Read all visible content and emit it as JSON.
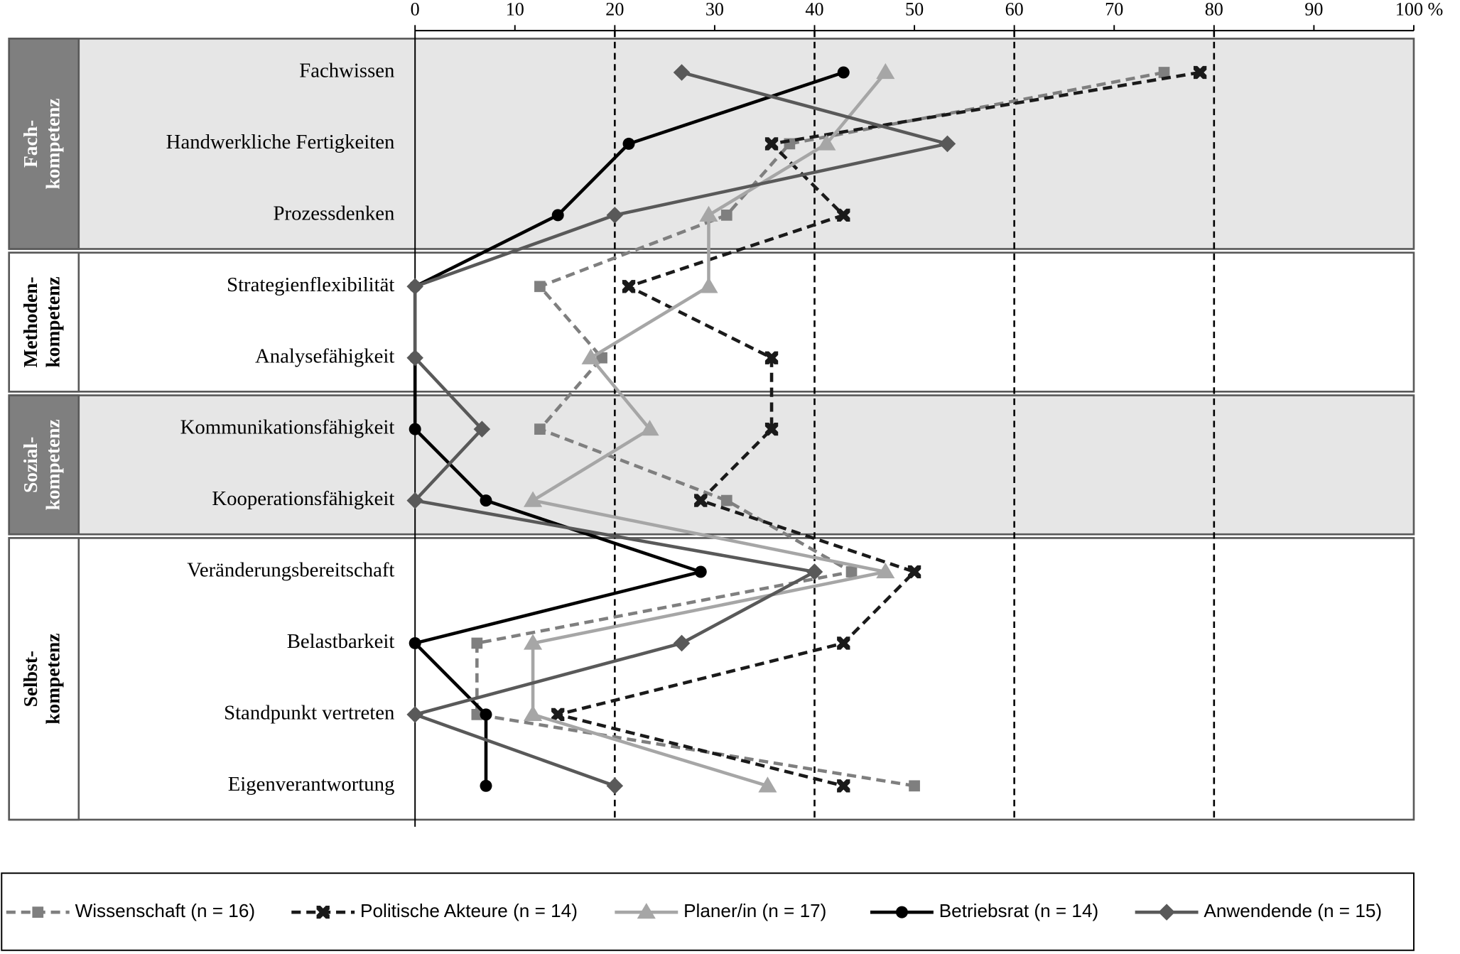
{
  "chart_data": {
    "type": "line",
    "orientation": "horizontal",
    "groups": [
      {
        "label": [
          "Fach-",
          "kompetenz"
        ],
        "shaded": true,
        "categories": [
          "Fachwissen",
          "Handwerkliche Fertigkeiten",
          "Prozessdenken"
        ]
      },
      {
        "label": [
          "Methoden-",
          "kompetenz"
        ],
        "shaded": false,
        "categories": [
          "Strategienflexibilität",
          "Analysefähigkeit"
        ]
      },
      {
        "label": [
          "Sozial-",
          "kompetenz"
        ],
        "shaded": true,
        "categories": [
          "Kommunikationsfähigkeit",
          "Kooperationsfähigkeit"
        ]
      },
      {
        "label": [
          "Selbst-",
          "kompetenz"
        ],
        "shaded": false,
        "categories": [
          "Veränderungsbereitschaft",
          "Belastbarkeit",
          "Standpunkt vertreten",
          "Eigenverantwortung"
        ]
      }
    ],
    "xlim": [
      0,
      100
    ],
    "xticks": [
      0,
      10,
      20,
      30,
      40,
      50,
      60,
      70,
      80,
      90,
      {
        "value": 100,
        "label": "100 %"
      }
    ],
    "series": [
      {
        "name": "Wissenschaft (n = 16)",
        "color": "#7f7f7f",
        "dashed": true,
        "marker": "square",
        "values": [
          75.0,
          37.5,
          31.2,
          12.5,
          18.7,
          12.5,
          31.2,
          43.7,
          6.2,
          6.2,
          50.0
        ]
      },
      {
        "name": "Politische Akteure (n = 14)",
        "color": "#1a1a1a",
        "dashed": true,
        "marker": "cross",
        "values": [
          78.6,
          35.7,
          42.9,
          21.4,
          35.7,
          35.7,
          28.6,
          50.0,
          42.9,
          14.3,
          42.9
        ]
      },
      {
        "name": "Planer/in (n = 17)",
        "color": "#a6a6a6",
        "dashed": false,
        "marker": "triangle",
        "values": [
          47.1,
          41.2,
          29.4,
          29.4,
          17.6,
          23.5,
          11.8,
          47.1,
          11.8,
          11.8,
          35.3
        ]
      },
      {
        "name": "Betriebsrat (n = 14)",
        "color": "#000000",
        "dashed": false,
        "marker": "circle",
        "values": [
          42.9,
          21.4,
          14.3,
          0,
          0,
          0,
          7.1,
          28.6,
          0,
          7.1,
          7.1
        ]
      },
      {
        "name": "Anwendende (n = 15)",
        "color": "#595959",
        "dashed": false,
        "marker": "diamond",
        "values": [
          26.7,
          53.3,
          20.0,
          0,
          0,
          6.7,
          0,
          40.0,
          26.7,
          0,
          20.0
        ]
      }
    ]
  }
}
